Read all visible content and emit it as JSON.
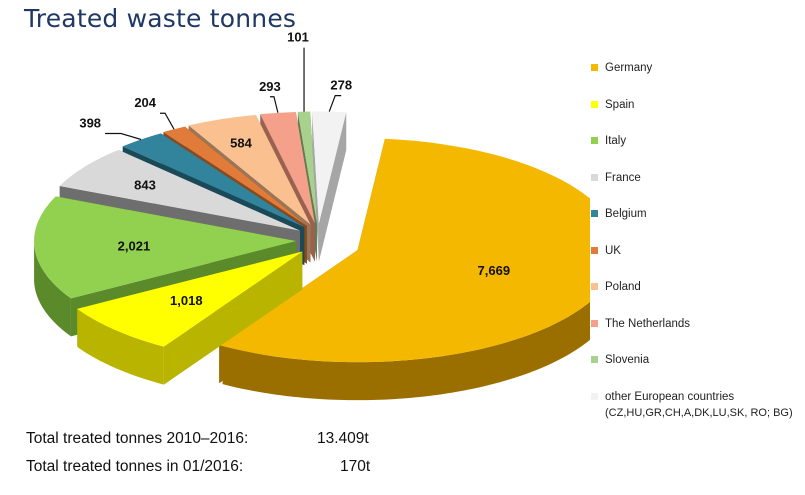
{
  "title": "Treated waste tonnes",
  "chart_data": {
    "type": "pie",
    "title": "Treated waste tonnes",
    "slices": [
      {
        "name": "Germany",
        "value": 7669,
        "label": "7,669",
        "color": "#f5b800",
        "side": "#9a6f00"
      },
      {
        "name": "Spain",
        "value": 1018,
        "label": "1,018",
        "color": "#ffff00",
        "side": "#b8b400"
      },
      {
        "name": "Italy",
        "value": 2021,
        "label": "2,021",
        "color": "#92d050",
        "side": "#5a8a2a"
      },
      {
        "name": "France",
        "value": 843,
        "label": "843",
        "color": "#d9d9d9",
        "side": "#6e6e6e"
      },
      {
        "name": "Belgium",
        "value": 398,
        "label": "398",
        "color": "#31849b",
        "side": "#1a4a58"
      },
      {
        "name": "UK",
        "value": 204,
        "label": "204",
        "color": "#e07b39",
        "side": "#8a4a1e"
      },
      {
        "name": "Poland",
        "value": 584,
        "label": "584",
        "color": "#fac090",
        "side": "#9a7656"
      },
      {
        "name": "The Netherlands",
        "value": 293,
        "label": "293",
        "color": "#f4a08a",
        "side": "#9a6050"
      },
      {
        "name": "Slovenia",
        "value": 101,
        "label": "101",
        "color": "#a9d18e",
        "side": "#5f7d4f"
      },
      {
        "name": "other European countries",
        "value": 278,
        "label": "278",
        "color": "#f2f2f2",
        "side": "#a6a6a6"
      }
    ],
    "legend_position": "right"
  },
  "legend": [
    {
      "label": "Germany",
      "color": "#f5b800"
    },
    {
      "label": "Spain",
      "color": "#ffff00"
    },
    {
      "label": "Italy",
      "color": "#92d050"
    },
    {
      "label": "France",
      "color": "#d9d9d9"
    },
    {
      "label": "Belgium",
      "color": "#31849b"
    },
    {
      "label": "UK",
      "color": "#e07b39"
    },
    {
      "label": "Poland",
      "color": "#fac090"
    },
    {
      "label": "The Netherlands",
      "color": "#f4a08a"
    },
    {
      "label": "Slovenia",
      "color": "#a9d18e"
    },
    {
      "label": "other European countries",
      "sub": "(CZ,HU,GR,CH,A,DK,LU,SK, RO; BG)",
      "color": "#f2f2f2"
    }
  ],
  "totals": [
    {
      "label": "Total treated tonnes 2010–2016:",
      "value": "13.409t"
    },
    {
      "label": "Total treated tonnes  in 01/2016:",
      "value": "170t"
    }
  ]
}
